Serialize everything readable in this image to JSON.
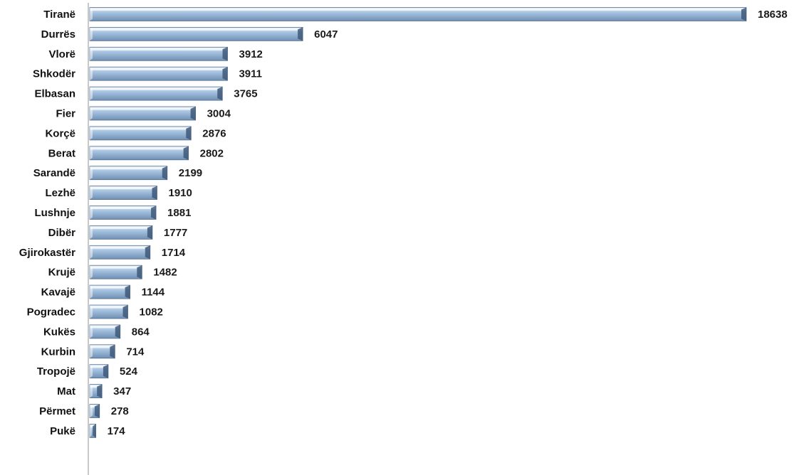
{
  "chart_data": {
    "type": "bar",
    "orientation": "horizontal",
    "categories": [
      "Tiranë",
      "Durrës",
      "Vlorë",
      "Shkodër",
      "Elbasan",
      "Fier",
      "Korçë",
      "Berat",
      "Sarandë",
      "Lezhë",
      "Lushnje",
      "Dibër",
      "Gjirokastër",
      "Krujë",
      "Kavajë",
      "Pogradec",
      "Kukës",
      "Kurbin",
      "Tropojë",
      "Mat",
      "Përmet",
      "Pukë"
    ],
    "values": [
      18638,
      6047,
      3912,
      3911,
      3765,
      3004,
      2876,
      2802,
      2199,
      1910,
      1881,
      1777,
      1714,
      1482,
      1144,
      1082,
      864,
      714,
      524,
      347,
      278,
      174
    ],
    "value_labels": [
      "18638",
      "6047",
      "3912",
      "3911",
      "3765",
      "3004",
      "2876",
      "2802",
      "2199",
      "1910",
      "1881",
      "1777",
      "1714",
      "1482",
      "1144",
      "1082",
      "864",
      "714",
      "524",
      "347",
      "278",
      "174"
    ],
    "title": "",
    "xlabel": "",
    "ylabel": "",
    "xlim": [
      0,
      18638
    ],
    "grid": false,
    "legend": "none",
    "colors": {
      "bar_light": "#e9f2fb",
      "bar_mid": "#a9c5e2",
      "bar_dark": "#6f8fb3",
      "bar_edge": "#55708f",
      "axis": "#c8c8c8"
    }
  }
}
